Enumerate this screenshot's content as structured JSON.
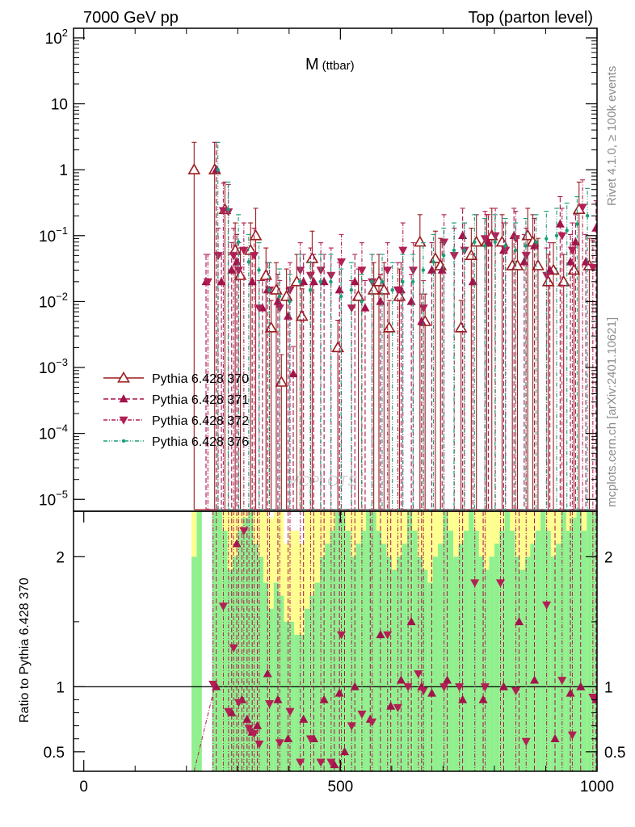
{
  "header": {
    "left": "7000 GeV pp",
    "right": "Top (parton level)"
  },
  "side_text": {
    "rivet": "Rivet 4.1.0, ≥ 100k events",
    "mcplots": "mcplots.cern.ch [arXiv:2401.10621]"
  },
  "watermark": "MCPLOTS",
  "colors": {
    "ref": "#9a1c1c",
    "s371": "#a3134b",
    "s372": "#b31f55",
    "s376": "#1a9e7a",
    "band_green": "#90f090",
    "band_yellow": "#ffff90",
    "axis": "#000000"
  },
  "chart_data": [
    {
      "type": "scatter",
      "title": "M",
      "title_sub": "(ttbar)",
      "xlabel": "",
      "ylabel": "",
      "yscale": "log",
      "xlim": [
        -20,
        1000
      ],
      "ylim": [
        6.6e-06,
        140
      ],
      "y_ticks": [
        {
          "value": 100,
          "label": "10",
          "exp": "2"
        },
        {
          "value": 10,
          "label": "10",
          "exp": ""
        },
        {
          "value": 1,
          "label": "1",
          "exp": ""
        },
        {
          "value": 0.1,
          "label": "10",
          "exp": "−1"
        },
        {
          "value": 0.01,
          "label": "10",
          "exp": "−2"
        },
        {
          "value": 0.001,
          "label": "10",
          "exp": "−3"
        },
        {
          "value": 0.0001,
          "label": "10",
          "exp": "−4"
        },
        {
          "value": 1e-05,
          "label": "10",
          "exp": "−5"
        }
      ],
      "legend": [
        {
          "label": "Pythia 6.428 370",
          "marker": "triangle-open",
          "style": "solid"
        },
        {
          "label": "Pythia 6.428 371",
          "marker": "triangle-up",
          "style": "dashed"
        },
        {
          "label": "Pythia 6.428 372",
          "marker": "triangle-down",
          "style": "dashdot"
        },
        {
          "label": "Pythia 6.428 376",
          "marker": "dot",
          "style": "dashdotdot"
        }
      ],
      "series": [
        {
          "name": "Pythia 6.428 370",
          "x": [
            215,
            255,
            275,
            295,
            305,
            325,
            335,
            355,
            365,
            375,
            385,
            395,
            415,
            425,
            445,
            495,
            535,
            565,
            575,
            585,
            595,
            615,
            655,
            665,
            685,
            695,
            735,
            755,
            765,
            785,
            795,
            815,
            835,
            845,
            865,
            875,
            885,
            905,
            915,
            935,
            955,
            965,
            985
          ],
          "y": [
            1.0,
            1.0,
            0.25,
            0.06,
            0.025,
            0.06,
            0.1,
            0.025,
            0.004,
            0.015,
            0.0006,
            0.012,
            0.02,
            0.006,
            0.045,
            0.002,
            0.012,
            0.015,
            0.02,
            0.015,
            0.004,
            0.012,
            0.08,
            0.005,
            0.045,
            0.035,
            0.004,
            0.05,
            0.08,
            0.08,
            0.1,
            0.08,
            0.035,
            0.035,
            0.1,
            0.08,
            0.035,
            0.02,
            0.03,
            0.02,
            0.03,
            0.25,
            0.035
          ]
        },
        {
          "name": "Pythia 6.428 371",
          "x": [
            235,
            255,
            265,
            285,
            295,
            325,
            345,
            355,
            375,
            395,
            405,
            425,
            445,
            465,
            495,
            525,
            545,
            575,
            615,
            635,
            655,
            675,
            695,
            735,
            755,
            785,
            815,
            835,
            855,
            875,
            905,
            925,
            945,
            955,
            975,
            995
          ],
          "y": [
            0.02,
            1.0,
            0.02,
            0.03,
            0.04,
            0.02,
            0.008,
            0.015,
            0.01,
            0.006,
            0.0008,
            0.02,
            0.02,
            0.02,
            0.015,
            0.02,
            0.008,
            0.01,
            0.015,
            0.01,
            0.005,
            0.03,
            0.03,
            0.1,
            0.02,
            0.08,
            0.06,
            0.1,
            0.04,
            0.07,
            0.03,
            0.15,
            0.04,
            0.08,
            0.04,
            0.13
          ]
        },
        {
          "name": "Pythia 6.428 372",
          "x": [
            245,
            265,
            275,
            285,
            295,
            305,
            315,
            335,
            345,
            365,
            385,
            405,
            425,
            445,
            465,
            485,
            505,
            525,
            545,
            565,
            595,
            615,
            625,
            645,
            665,
            705,
            725,
            745,
            785,
            805,
            825,
            845,
            865,
            905,
            935,
            955,
            975,
            995
          ],
          "y": [
            0.02,
            0.05,
            0.24,
            0.23,
            0.05,
            0.03,
            0.06,
            0.05,
            0.008,
            0.015,
            0.008,
            0.015,
            0.03,
            0.025,
            0.03,
            0.025,
            0.04,
            0.008,
            0.03,
            0.02,
            0.03,
            0.015,
            0.06,
            0.03,
            0.008,
            0.08,
            0.05,
            0.06,
            0.09,
            0.1,
            0.06,
            0.09,
            0.05,
            0.025,
            0.1,
            0.06,
            0.27,
            0.033
          ]
        },
        {
          "name": "Pythia 6.428 376",
          "x": [
            255,
            275,
            295,
            315,
            335,
            355,
            375,
            395,
            415,
            435,
            455,
            475,
            495,
            515,
            535,
            555,
            575,
            595,
            615,
            635,
            655,
            675,
            695,
            715,
            735,
            755,
            775,
            795,
            815,
            835,
            855,
            875,
            895,
            915,
            935,
            955,
            975,
            995
          ],
          "y": [
            1.0,
            0.25,
            0.08,
            0.04,
            0.03,
            0.015,
            0.012,
            0.01,
            0.02,
            0.015,
            0.02,
            0.02,
            0.012,
            0.015,
            0.01,
            0.02,
            0.02,
            0.015,
            0.02,
            0.02,
            0.03,
            0.04,
            0.05,
            0.06,
            0.06,
            0.08,
            0.07,
            0.08,
            0.07,
            0.06,
            0.07,
            0.08,
            0.09,
            0.1,
            0.12,
            0.15,
            0.2,
            0.03
          ]
        }
      ]
    },
    {
      "type": "scatter",
      "title": "",
      "xlabel": "",
      "ylabel": "Ratio to Pythia 6.428 370",
      "xlim": [
        -20,
        1000
      ],
      "ylim": [
        0.35,
        2.35
      ],
      "x_ticks": [
        {
          "value": 0,
          "label": "0"
        },
        {
          "value": 500,
          "label": "500"
        },
        {
          "value": 1000,
          "label": "1000"
        }
      ],
      "y_ticks": [
        {
          "value": 2,
          "label": "2"
        },
        {
          "value": 1,
          "label": "1"
        },
        {
          "value": 0.5,
          "label": "0.5"
        }
      ],
      "reference_line": 1,
      "bands": {
        "x": [
          215,
          225,
          255,
          265,
          275,
          285,
          295,
          305,
          315,
          325,
          335,
          345,
          355,
          365,
          375,
          385,
          395,
          405,
          415,
          425,
          435,
          445,
          455,
          465,
          475,
          485,
          495,
          505,
          515,
          525,
          535,
          545,
          555,
          565,
          575,
          585,
          595,
          605,
          615,
          625,
          635,
          645,
          655,
          665,
          675,
          685,
          695,
          705,
          715,
          725,
          735,
          745,
          755,
          765,
          775,
          785,
          795,
          805,
          815,
          825,
          835,
          845,
          855,
          865,
          875,
          885,
          895,
          905,
          915,
          925,
          935,
          945,
          955,
          965,
          975,
          985,
          995
        ],
        "green_hi": [
          2.0,
          2.35,
          2.35,
          2.35,
          2.2,
          1.9,
          2.0,
          2.2,
          2.3,
          2.35,
          2.1,
          2.0,
          1.8,
          1.6,
          1.8,
          1.7,
          1.5,
          1.5,
          1.4,
          1.4,
          1.6,
          1.7,
          1.8,
          2.0,
          2.1,
          2.2,
          2.35,
          2.35,
          2.2,
          2.0,
          2.1,
          2.2,
          2.35,
          2.35,
          2.2,
          2.1,
          2.0,
          1.9,
          2.0,
          2.1,
          2.35,
          2.2,
          2.0,
          1.9,
          1.8,
          2.0,
          2.1,
          2.35,
          2.2,
          2.0,
          2.1,
          2.2,
          2.35,
          2.2,
          2.0,
          1.9,
          2.0,
          2.1,
          2.2,
          2.35,
          2.2,
          2.0,
          1.9,
          2.0,
          2.1,
          2.2,
          2.35,
          2.2,
          2.0,
          2.1,
          2.35,
          2.2,
          2.3,
          2.35,
          2.2,
          2.35,
          2.35
        ],
        "yellow_hi": [
          2.35,
          2.35,
          2.35,
          2.35,
          2.35,
          2.35,
          2.35,
          2.35,
          2.35,
          2.35,
          2.35,
          2.35,
          2.35,
          2.3,
          2.35,
          2.35,
          2.1,
          2.2,
          2.2,
          2.1,
          2.35,
          2.35,
          2.35,
          2.35,
          2.35,
          2.35,
          2.35,
          2.35,
          2.35,
          2.35,
          2.35,
          2.35,
          2.35,
          2.35,
          2.35,
          2.35,
          2.35,
          2.35,
          2.35,
          2.35,
          2.35,
          2.35,
          2.35,
          2.35,
          2.35,
          2.35,
          2.35,
          2.35,
          2.35,
          2.35,
          2.35,
          2.35,
          2.35,
          2.35,
          2.35,
          2.35,
          2.35,
          2.35,
          2.35,
          2.35,
          2.35,
          2.35,
          2.35,
          2.35,
          2.35,
          2.35,
          2.35,
          2.35,
          2.35,
          2.35,
          2.35,
          2.35,
          2.35,
          2.35,
          2.35,
          2.35,
          2.35
        ]
      },
      "series": [
        {
          "name": "Pythia 6.428 371",
          "x": [
            255,
            285,
            295,
            305,
            315,
            325,
            335,
            355,
            375,
            395,
            425,
            445,
            465,
            485,
            495,
            505,
            525,
            555,
            575,
            595,
            615,
            635,
            655,
            675,
            705,
            735,
            775,
            815,
            845,
            875,
            915,
            945,
            965,
            995
          ],
          "y": [
            1.0,
            0.8,
            2.1,
            0.9,
            0.75,
            0.65,
            0.7,
            1.1,
            0.9,
            0.6,
            0.75,
            0.6,
            0.9,
            0.4,
            0.95,
            0.5,
            1.0,
            0.75,
            1.4,
            0.85,
            1.05,
            1.5,
            1.0,
            0.95,
            1.05,
            0.9,
            0.9,
            1.0,
            1.5,
            1.05,
            0.6,
            0.95,
            1.0,
            0.9
          ]
        },
        {
          "name": "Pythia 6.428 372",
          "x": [
            255,
            275,
            285,
            295,
            305,
            315,
            325,
            335,
            345,
            365,
            385,
            405,
            425,
            445,
            465,
            485,
            505,
            525,
            545,
            565,
            595,
            615,
            635,
            655,
            665,
            705,
            735,
            765,
            785,
            815,
            845,
            865,
            905,
            935,
            955,
            995
          ],
          "y": [
            1.02,
            1.62,
            0.81,
            1.3,
            0.88,
            2.2,
            0.68,
            0.64,
            0.56,
            0.87,
            0.57,
            0.81,
            0.42,
            0.6,
            0.42,
            0.42,
            1.4,
            0.7,
            0.79,
            0.73,
            1.4,
            0.84,
            1.0,
            1.1,
            0.97,
            1.0,
            1.0,
            1.8,
            1.0,
            1.8,
            0.97,
            0.58,
            1.63,
            1.05,
            0.63,
            0.92
          ]
        }
      ]
    }
  ]
}
